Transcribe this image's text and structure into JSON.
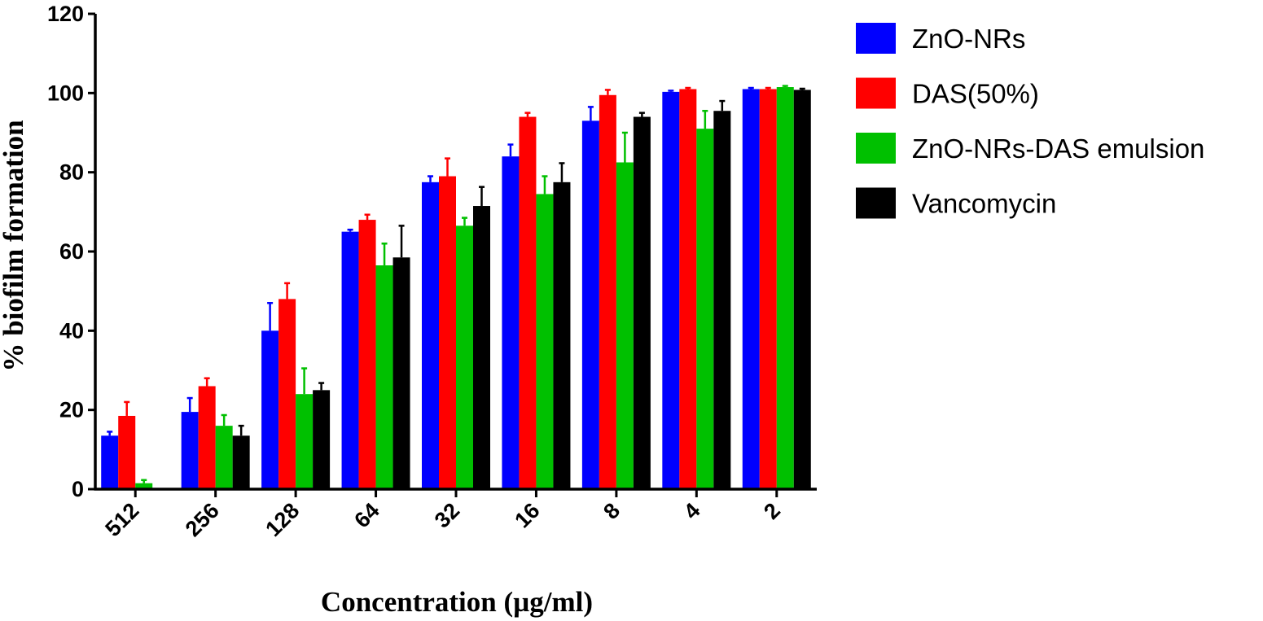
{
  "chart_data": {
    "type": "bar",
    "title": "",
    "xlabel": "Concentration (µg/ml)",
    "ylabel": "% biofilm formation",
    "ylim": [
      0,
      120
    ],
    "yticks": [
      0,
      20,
      40,
      60,
      80,
      100,
      120
    ],
    "categories": [
      "512",
      "256",
      "128",
      "64",
      "32",
      "16",
      "8",
      "4",
      "2"
    ],
    "series": [
      {
        "name": "ZnO-NRs",
        "color": "#0000ff",
        "values": [
          13.5,
          19.5,
          40,
          65,
          77.5,
          84,
          93,
          100.3,
          101
        ],
        "errors": [
          1.0,
          3.5,
          7.0,
          0.5,
          1.5,
          3.0,
          3.5,
          0.3,
          0.3
        ]
      },
      {
        "name": "DAS(50%)",
        "color": "#ff0000",
        "values": [
          18.5,
          26,
          48,
          68,
          79,
          94,
          99.5,
          101,
          101
        ],
        "errors": [
          3.5,
          2.0,
          4.0,
          1.3,
          4.5,
          1.0,
          1.3,
          0.3,
          0.3
        ]
      },
      {
        "name": "ZnO-NRs-DAS emulsion",
        "color": "#00c000",
        "values": [
          1.5,
          16,
          24,
          56.5,
          66.5,
          74.5,
          82.5,
          91,
          101.5
        ],
        "errors": [
          0.8,
          2.7,
          6.5,
          5.5,
          2.0,
          4.5,
          7.5,
          4.5,
          0.3
        ]
      },
      {
        "name": "Vancomycin",
        "color": "#000000",
        "values": [
          null,
          13.5,
          25,
          58.5,
          71.5,
          77.5,
          94,
          95.5,
          100.8
        ],
        "errors": [
          null,
          2.5,
          1.8,
          8.0,
          4.8,
          4.8,
          1.0,
          2.5,
          0.3
        ]
      }
    ],
    "legend_position": "right",
    "grid": false
  }
}
